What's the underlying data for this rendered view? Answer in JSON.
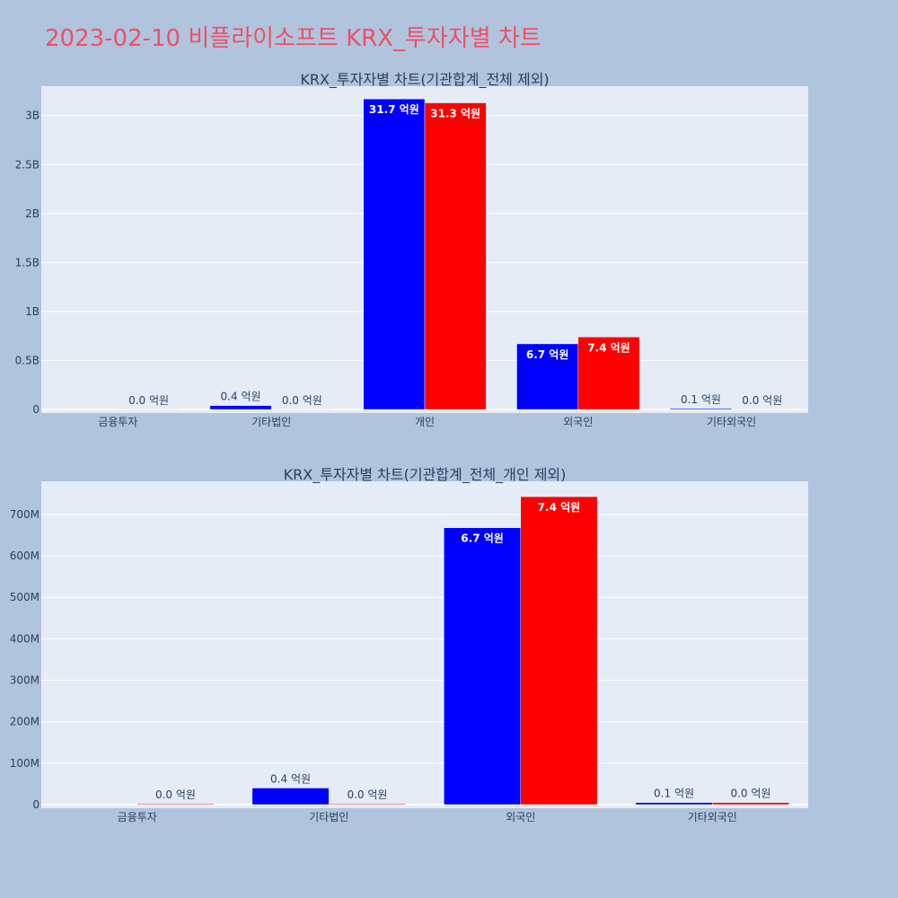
{
  "page": {
    "title": "2023-02-10 비플라이소프트 KRX_투자자별 차트"
  },
  "colors": {
    "background": "#b0c4de",
    "plot_bg": "#e5ecf6",
    "grid": "#ffffff",
    "title": "#ef5064",
    "series_a": "#0000ff",
    "series_b": "#ff0000",
    "text": "#2a3f5f"
  },
  "chart_data": [
    {
      "type": "bar",
      "title": "KRX_투자자별 차트(기관합계_전체 제외)",
      "categories": [
        "금융투자",
        "기타법인",
        "개인",
        "외국인",
        "기타외국인"
      ],
      "ylim": [
        0,
        3300000000
      ],
      "yticks": [
        0,
        500000000,
        1000000000,
        1500000000,
        2000000000,
        2500000000,
        3000000000
      ],
      "ytick_labels": [
        "0",
        "0.5B",
        "1B",
        "1.5B",
        "2B",
        "2.5B",
        "3B"
      ],
      "grid": true,
      "series": [
        {
          "color": "#0000ff",
          "values": [
            0,
            40000000,
            3170000000,
            670000000,
            10000000
          ],
          "labels": [
            "",
            "0.4 억원",
            "31.7 억원",
            "6.7 억원",
            "0.1 억원"
          ]
        },
        {
          "color": "#ff0000",
          "values": [
            2000000,
            2000000,
            3130000000,
            740000000,
            2000000
          ],
          "labels": [
            "0.0 억원",
            "0.0 억원",
            "31.3 억원",
            "7.4 억원",
            "0.0 억원"
          ]
        }
      ]
    },
    {
      "type": "bar",
      "title": "KRX_투자자별 차트(기관합계_전체_개인 제외)",
      "categories": [
        "금융투자",
        "기타법인",
        "외국인",
        "기타외국인"
      ],
      "ylim": [
        0,
        780000000
      ],
      "yticks": [
        0,
        100000000,
        200000000,
        300000000,
        400000000,
        500000000,
        600000000,
        700000000
      ],
      "ytick_labels": [
        "0",
        "100M",
        "200M",
        "300M",
        "400M",
        "500M",
        "600M",
        "700M"
      ],
      "grid": true,
      "series": [
        {
          "color": "#0000ff",
          "values": [
            0,
            40000000,
            668000000,
            5000000
          ],
          "labels": [
            "",
            "0.4 억원",
            "6.7 억원",
            "0.1 억원"
          ]
        },
        {
          "color": "#ff0000",
          "values": [
            2000000,
            2000000,
            743000000,
            5000000
          ],
          "labels": [
            "0.0 억원",
            "0.0 억원",
            "7.4 억원",
            "0.0 억원"
          ]
        }
      ]
    }
  ]
}
